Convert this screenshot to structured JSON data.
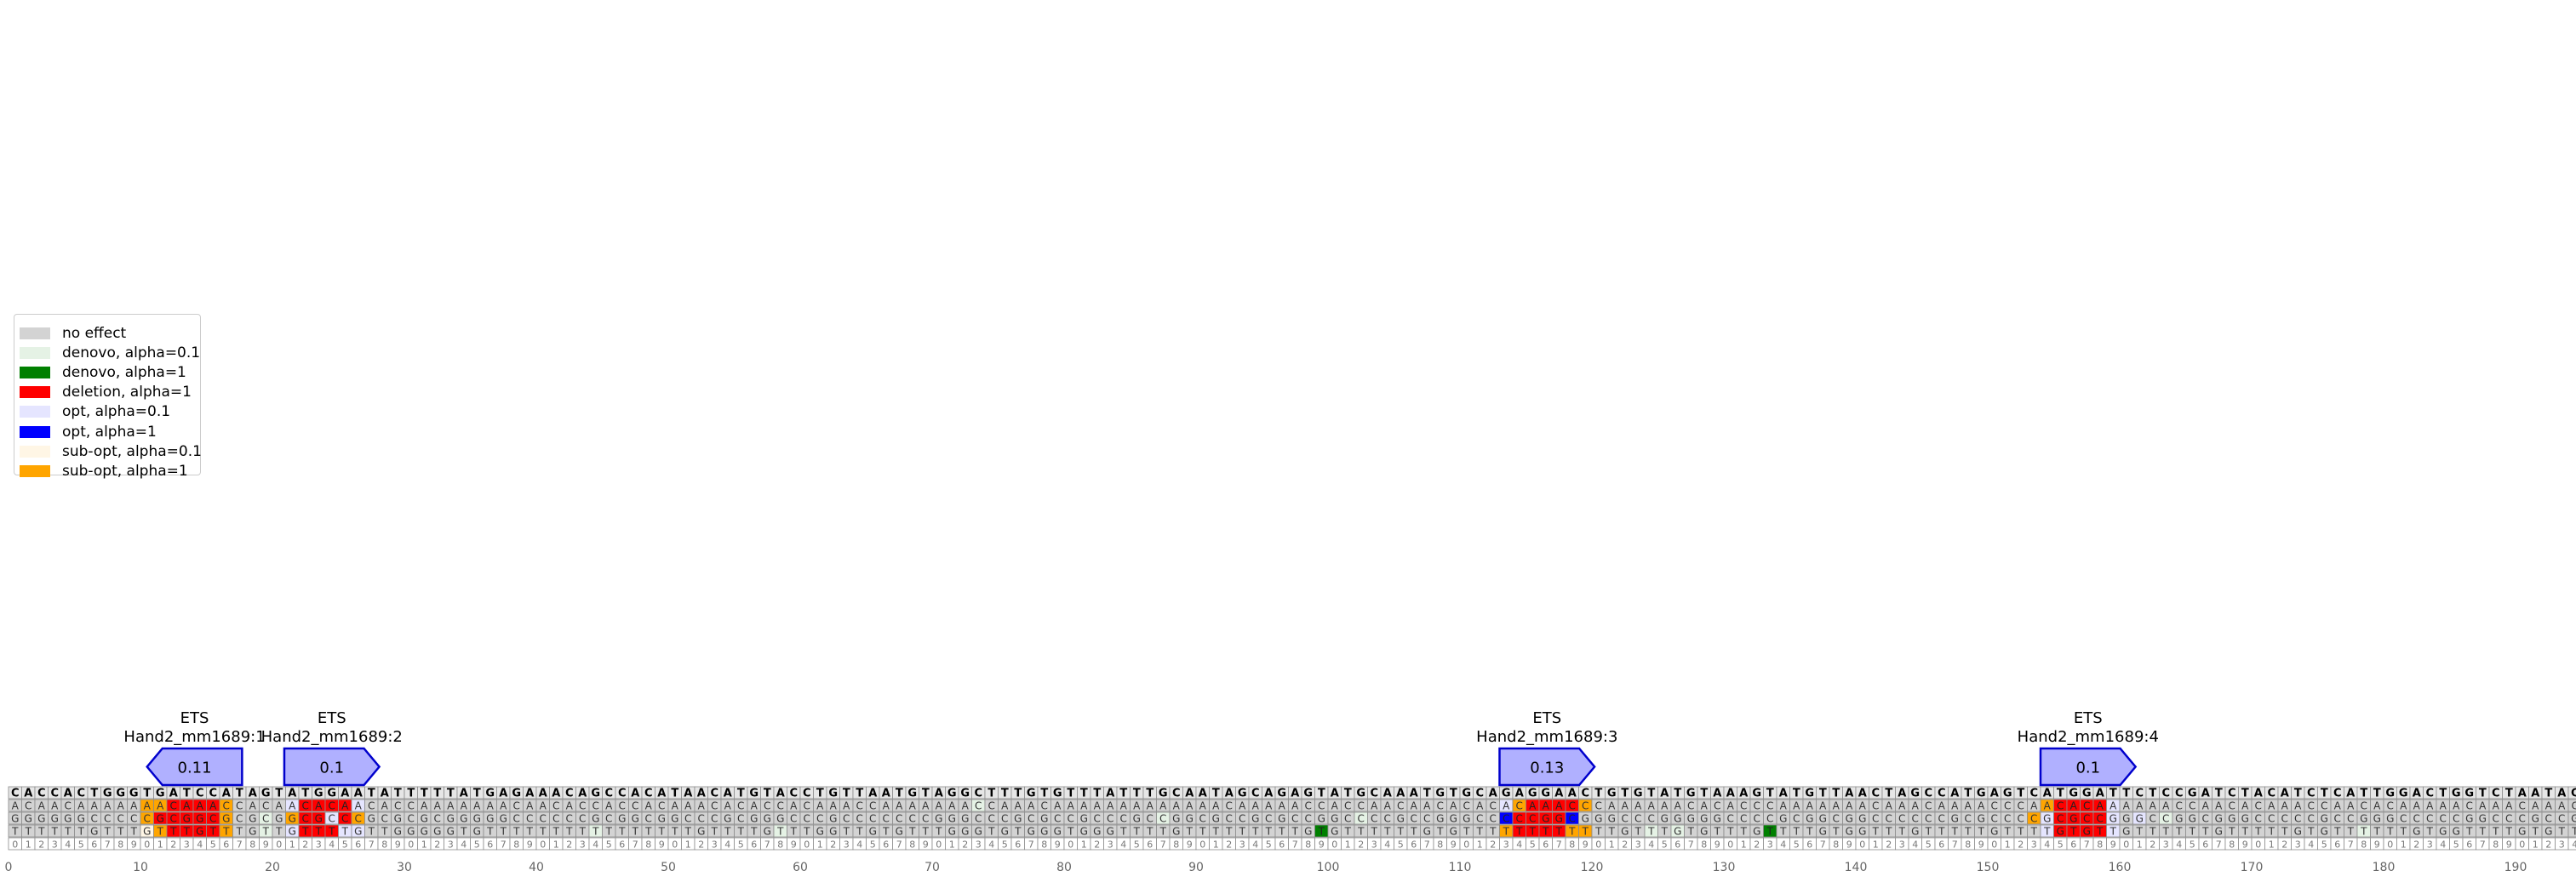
{
  "legend": {
    "items": [
      {
        "label": "no effect",
        "color": "#d3d3d3"
      },
      {
        "label": "denovo, alpha=0.1",
        "color": "#e5f2e5"
      },
      {
        "label": "denovo, alpha=1",
        "color": "#008000"
      },
      {
        "label": "deletion, alpha=1",
        "color": "#ff0000"
      },
      {
        "label": "opt, alpha=0.1",
        "color": "#e5e5ff"
      },
      {
        "label": "opt, alpha=1",
        "color": "#0000ff"
      },
      {
        "label": "sub-opt, alpha=0.1",
        "color": "#fff6e5"
      },
      {
        "label": "sub-opt, alpha=1",
        "color": "#ffa500"
      }
    ]
  },
  "chart_data": {
    "type": "heatmap",
    "sequence": "CACCACTGGGTGATCCATAGTATGGAATATTTTTATGAGAAACAGCCACATAACATGTACCTGTTAATGTAGGCTTTGTGTTTATTTGCAATAGCAGAGTATGCAAATGTGCAGAGGAACTGTGTATGTAAAGTATGTTAACTAGCCATGAGTCATGGATTCTCCGATCTACATCTCATTGGACTGGTCTAATAC",
    "mutation_rows": [
      "ACAACAAAAAAACAAACCACAACACAACACCAAAAAAACAACACCACCACAAACACACCACAAACCAAAAAAACCAAACAAAAAAAAAAAAACAAAAACCACCAACAACACACACAAACCCAAAAAACACACCCAAAAAAACAAACAAAACCCAACACAAAAAACCAACACAAACCAACACAAAAACAAACAAACACAAAACAAAAAAAAACACACAAA",
      "GGGGGGCCCCCGCGGCGCGCGGCGCCCGCGCGCGGGGGCCCCCCGCGGCGGCCCGCGGGCCCGCCCCCCCGGGCCCGCGCCGCCCGCCGGCGCCGCGCCGGCCCCGCCGGGCCCCCGGCGGGCCCGGGGGCCCCGCGGCGGCCCCCCGCGCCCCGCGCCGGGCCGGCGGGCCCCCGCCGGGCCCCCGGCCCGCCGCCCCCGGCCCCGGCCCGG",
      "TTTTTTGTTTGTTTGTTTGTTGTTTTGTTGGGGGTGTTTTTTTTTTTTTTTTGTTTTGTTTGGTTGTGTTTGGGTGTGGGTGGGTTTTGTTTTTTTTTGTGTTTTTTGTGTTTTTTTTTTTTGTTTGTGTTTGTTTTGTGGTTTGTTTTTGTTTTGTGTTGTTTTTTGTTTTTGTGTTTTTTGTGGTTTTGTGTTGGTTGTTTTTGTTGTTTTT"
    ],
    "highlights": [
      {
        "row": 0,
        "pos": 10,
        "effect": "sub-opt, alpha=1"
      },
      {
        "row": 0,
        "pos": 11,
        "effect": "sub-opt, alpha=1"
      },
      {
        "row": 0,
        "pos": 12,
        "effect": "deletion, alpha=1"
      },
      {
        "row": 0,
        "pos": 13,
        "effect": "deletion, alpha=1"
      },
      {
        "row": 0,
        "pos": 14,
        "effect": "deletion, alpha=1"
      },
      {
        "row": 0,
        "pos": 15,
        "effect": "deletion, alpha=1"
      },
      {
        "row": 0,
        "pos": 16,
        "effect": "sub-opt, alpha=1"
      },
      {
        "row": 1,
        "pos": 10,
        "effect": "sub-opt, alpha=1"
      },
      {
        "row": 1,
        "pos": 11,
        "effect": "deletion, alpha=1"
      },
      {
        "row": 1,
        "pos": 12,
        "effect": "deletion, alpha=1"
      },
      {
        "row": 1,
        "pos": 13,
        "effect": "deletion, alpha=1"
      },
      {
        "row": 1,
        "pos": 14,
        "effect": "deletion, alpha=1"
      },
      {
        "row": 1,
        "pos": 15,
        "effect": "deletion, alpha=1"
      },
      {
        "row": 1,
        "pos": 16,
        "effect": "sub-opt, alpha=1"
      },
      {
        "row": 2,
        "pos": 10,
        "effect": "sub-opt, alpha=0.1"
      },
      {
        "row": 2,
        "pos": 11,
        "effect": "sub-opt, alpha=1"
      },
      {
        "row": 2,
        "pos": 12,
        "effect": "deletion, alpha=1"
      },
      {
        "row": 2,
        "pos": 13,
        "effect": "deletion, alpha=1"
      },
      {
        "row": 2,
        "pos": 14,
        "effect": "deletion, alpha=1"
      },
      {
        "row": 2,
        "pos": 15,
        "effect": "deletion, alpha=1"
      },
      {
        "row": 2,
        "pos": 16,
        "effect": "sub-opt, alpha=1"
      },
      {
        "row": 0,
        "pos": 21,
        "effect": "opt, alpha=0.1"
      },
      {
        "row": 0,
        "pos": 22,
        "effect": "deletion, alpha=1"
      },
      {
        "row": 0,
        "pos": 23,
        "effect": "deletion, alpha=1"
      },
      {
        "row": 0,
        "pos": 24,
        "effect": "deletion, alpha=1"
      },
      {
        "row": 0,
        "pos": 25,
        "effect": "deletion, alpha=1"
      },
      {
        "row": 0,
        "pos": 26,
        "effect": "opt, alpha=0.1"
      },
      {
        "row": 1,
        "pos": 21,
        "effect": "sub-opt, alpha=1"
      },
      {
        "row": 1,
        "pos": 22,
        "effect": "deletion, alpha=1"
      },
      {
        "row": 1,
        "pos": 23,
        "effect": "deletion, alpha=1"
      },
      {
        "row": 1,
        "pos": 24,
        "effect": "opt, alpha=0.1"
      },
      {
        "row": 1,
        "pos": 25,
        "effect": "deletion, alpha=1"
      },
      {
        "row": 1,
        "pos": 26,
        "effect": "sub-opt, alpha=1"
      },
      {
        "row": 2,
        "pos": 21,
        "effect": "opt, alpha=0.1"
      },
      {
        "row": 2,
        "pos": 22,
        "effect": "deletion, alpha=1"
      },
      {
        "row": 2,
        "pos": 23,
        "effect": "deletion, alpha=1"
      },
      {
        "row": 2,
        "pos": 24,
        "effect": "deletion, alpha=1"
      },
      {
        "row": 2,
        "pos": 25,
        "effect": "opt, alpha=0.1"
      },
      {
        "row": 2,
        "pos": 26,
        "effect": "opt, alpha=0.1"
      },
      {
        "row": 0,
        "pos": 113,
        "effect": "opt, alpha=0.1"
      },
      {
        "row": 0,
        "pos": 114,
        "effect": "sub-opt, alpha=1"
      },
      {
        "row": 0,
        "pos": 115,
        "effect": "deletion, alpha=1"
      },
      {
        "row": 0,
        "pos": 116,
        "effect": "deletion, alpha=1"
      },
      {
        "row": 0,
        "pos": 117,
        "effect": "deletion, alpha=1"
      },
      {
        "row": 0,
        "pos": 118,
        "effect": "deletion, alpha=1"
      },
      {
        "row": 0,
        "pos": 119,
        "effect": "sub-opt, alpha=1"
      },
      {
        "row": 1,
        "pos": 113,
        "effect": "opt, alpha=1"
      },
      {
        "row": 1,
        "pos": 114,
        "effect": "deletion, alpha=1"
      },
      {
        "row": 1,
        "pos": 115,
        "effect": "deletion, alpha=1"
      },
      {
        "row": 1,
        "pos": 116,
        "effect": "deletion, alpha=1"
      },
      {
        "row": 1,
        "pos": 117,
        "effect": "deletion, alpha=1"
      },
      {
        "row": 1,
        "pos": 118,
        "effect": "opt, alpha=1"
      },
      {
        "row": 2,
        "pos": 113,
        "effect": "sub-opt, alpha=1"
      },
      {
        "row": 2,
        "pos": 114,
        "effect": "deletion, alpha=1"
      },
      {
        "row": 2,
        "pos": 115,
        "effect": "deletion, alpha=1"
      },
      {
        "row": 2,
        "pos": 116,
        "effect": "deletion, alpha=1"
      },
      {
        "row": 2,
        "pos": 117,
        "effect": "deletion, alpha=1"
      },
      {
        "row": 2,
        "pos": 118,
        "effect": "sub-opt, alpha=1"
      },
      {
        "row": 2,
        "pos": 119,
        "effect": "sub-opt, alpha=1"
      },
      {
        "row": 0,
        "pos": 154,
        "effect": "sub-opt, alpha=1"
      },
      {
        "row": 0,
        "pos": 155,
        "effect": "deletion, alpha=1"
      },
      {
        "row": 0,
        "pos": 156,
        "effect": "deletion, alpha=1"
      },
      {
        "row": 0,
        "pos": 157,
        "effect": "deletion, alpha=1"
      },
      {
        "row": 0,
        "pos": 158,
        "effect": "deletion, alpha=1"
      },
      {
        "row": 0,
        "pos": 159,
        "effect": "opt, alpha=0.1"
      },
      {
        "row": 1,
        "pos": 153,
        "effect": "sub-opt, alpha=1"
      },
      {
        "row": 1,
        "pos": 154,
        "effect": "opt, alpha=0.1"
      },
      {
        "row": 1,
        "pos": 155,
        "effect": "deletion, alpha=1"
      },
      {
        "row": 1,
        "pos": 156,
        "effect": "deletion, alpha=1"
      },
      {
        "row": 1,
        "pos": 157,
        "effect": "deletion, alpha=1"
      },
      {
        "row": 1,
        "pos": 158,
        "effect": "deletion, alpha=1"
      },
      {
        "row": 1,
        "pos": 159,
        "effect": "opt, alpha=0.1"
      },
      {
        "row": 2,
        "pos": 154,
        "effect": "opt, alpha=0.1"
      },
      {
        "row": 2,
        "pos": 155,
        "effect": "deletion, alpha=1"
      },
      {
        "row": 2,
        "pos": 156,
        "effect": "deletion, alpha=1"
      },
      {
        "row": 2,
        "pos": 157,
        "effect": "deletion, alpha=1"
      },
      {
        "row": 2,
        "pos": 158,
        "effect": "deletion, alpha=1"
      },
      {
        "row": 2,
        "pos": 159,
        "effect": "opt, alpha=0.1"
      },
      {
        "row": 1,
        "pos": 161,
        "effect": "opt, alpha=0.1"
      },
      {
        "row": 2,
        "pos": 99,
        "effect": "denovo, alpha=1"
      },
      {
        "row": 2,
        "pos": 133,
        "effect": "denovo, alpha=1"
      },
      {
        "row": 1,
        "pos": 19,
        "effect": "denovo, alpha=0.1"
      },
      {
        "row": 2,
        "pos": 19,
        "effect": "denovo, alpha=0.1"
      },
      {
        "row": 2,
        "pos": 44,
        "effect": "denovo, alpha=0.1"
      },
      {
        "row": 2,
        "pos": 58,
        "effect": "denovo, alpha=0.1"
      },
      {
        "row": 0,
        "pos": 73,
        "effect": "denovo, alpha=0.1"
      },
      {
        "row": 1,
        "pos": 87,
        "effect": "denovo, alpha=0.1"
      },
      {
        "row": 1,
        "pos": 102,
        "effect": "denovo, alpha=0.1"
      },
      {
        "row": 2,
        "pos": 124,
        "effect": "denovo, alpha=0.1"
      },
      {
        "row": 2,
        "pos": 126,
        "effect": "denovo, alpha=0.1"
      },
      {
        "row": 1,
        "pos": 163,
        "effect": "denovo, alpha=0.1"
      },
      {
        "row": 2,
        "pos": 178,
        "effect": "denovo, alpha=0.1"
      }
    ],
    "motifs": [
      {
        "family": "ETS",
        "name": "Hand2_mm1689:1",
        "score": "0.11",
        "start": 10.5,
        "end": 17.7,
        "direction": "reverse"
      },
      {
        "family": "ETS",
        "name": "Hand2_mm1689:2",
        "score": "0.1",
        "start": 20.9,
        "end": 28.1,
        "direction": "forward"
      },
      {
        "family": "ETS",
        "name": "Hand2_mm1689:3",
        "score": "0.13",
        "start": 113.0,
        "end": 120.2,
        "direction": "forward"
      },
      {
        "family": "ETS",
        "name": "Hand2_mm1689:4",
        "score": "0.1",
        "start": 154.0,
        "end": 161.2,
        "direction": "forward"
      }
    ],
    "x_ticks": [
      0,
      10,
      20,
      30,
      40,
      50,
      60,
      70,
      80,
      90,
      100,
      110,
      120,
      130,
      140,
      150,
      160,
      170,
      180,
      190
    ],
    "xlim": [
      0,
      195.1
    ],
    "colors": {
      "ref_bg": "#e6e6e6",
      "cell_bg": "#d3d3d3",
      "grid": "#8c8c8c",
      "motif_fill": "#b0b0ff",
      "motif_edge": "#0000cc",
      "index_text": "#777777",
      "axis_text": "#666666"
    }
  }
}
